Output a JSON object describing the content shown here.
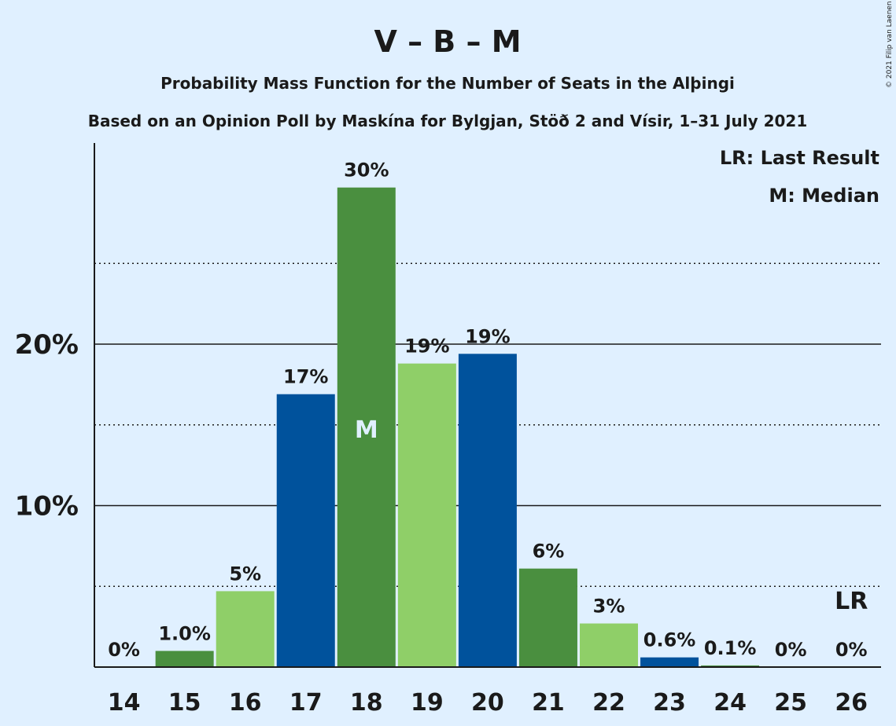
{
  "chart_data": {
    "type": "bar",
    "title": "V – B – M",
    "subtitle1": "Probability Mass Function for the Number of Seats in the Alþingi",
    "subtitle2": "Based on an Opinion Poll by Maskína for Bylgjan, Stöð 2 and Vísir, 1–31 July 2021",
    "categories": [
      "14",
      "15",
      "16",
      "17",
      "18",
      "19",
      "20",
      "21",
      "22",
      "23",
      "24",
      "25",
      "26"
    ],
    "values": [
      0,
      1.0,
      4.7,
      16.9,
      29.7,
      18.8,
      19.4,
      6.1,
      2.7,
      0.6,
      0.1,
      0,
      0
    ],
    "value_labels": [
      "0%",
      "1.0%",
      "5%",
      "17%",
      "30%",
      "19%",
      "19%",
      "6%",
      "3%",
      "0.6%",
      "0.1%",
      "0%",
      "0%"
    ],
    "colors": [
      "#4a8f3f",
      "#4a8f3f",
      "#8fcf68",
      "#00529c",
      "#4a8f3f",
      "#8fcf68",
      "#00529c",
      "#4a8f3f",
      "#8fcf68",
      "#00529c",
      "#4a8f3f",
      "#8fcf68",
      "#00529c"
    ],
    "ylim": [
      0,
      32
    ],
    "yticks": [
      10,
      20
    ],
    "ytick_labels": [
      "10%",
      "20%"
    ],
    "minor_gridlines": [
      5,
      15,
      25
    ],
    "median_category": "18",
    "median_marker": "M",
    "last_result_category": "26",
    "last_result_marker": "LR",
    "legend": [
      "LR: Last Result",
      "M: Median"
    ],
    "legend_position": "top-right",
    "copyright": "© 2021 Filip van Laenen"
  }
}
